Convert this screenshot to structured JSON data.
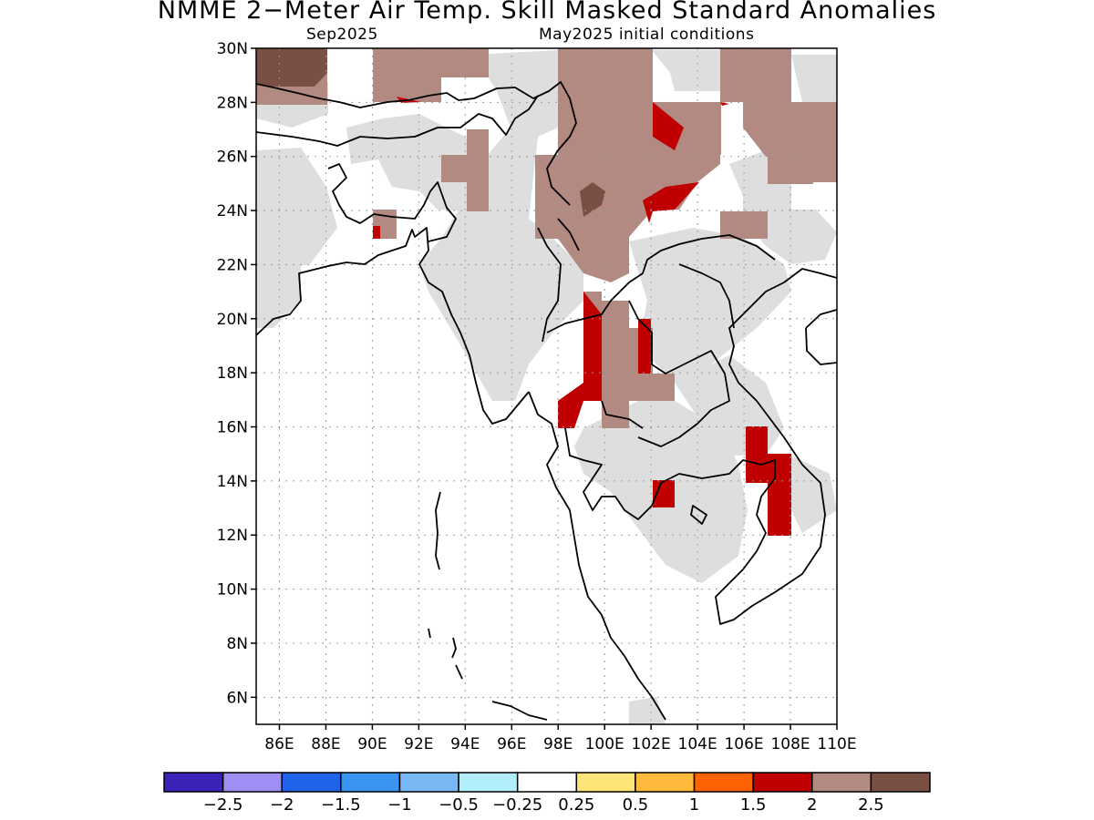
{
  "header": {
    "title": "NMME 2−Meter Air Temp. Skill Masked Standard Anomalies",
    "valid_month": "Sep2025",
    "initial_conditions": "May2025 initial conditions"
  },
  "map": {
    "lat_range": [
      5,
      30
    ],
    "lon_range": [
      85,
      110
    ],
    "lat_ticks": [
      "30N",
      "28N",
      "26N",
      "24N",
      "22N",
      "20N",
      "18N",
      "16N",
      "14N",
      "12N",
      "10N",
      "8N",
      "6N"
    ],
    "lon_ticks": [
      "86E",
      "88E",
      "90E",
      "92E",
      "94E",
      "96E",
      "98E",
      "100E",
      "102E",
      "104E",
      "106E",
      "108E",
      "110E"
    ],
    "gridlines": true
  },
  "colorbar": {
    "colors": [
      "#3b22b8",
      "#9f8ff5",
      "#1f64e8",
      "#3a95f2",
      "#78b9f5",
      "#b1eefa",
      "#ffffff",
      "#ffe477",
      "#ffba3b",
      "#ff6200",
      "#c00000",
      "#b38a82",
      "#7a4f44"
    ],
    "labels": [
      "−2.5",
      "−2",
      "−1.5",
      "−1",
      "−0.5",
      "−0.25",
      "0.25",
      "0.5",
      "1",
      "1.5",
      "2",
      "2.5"
    ]
  }
}
